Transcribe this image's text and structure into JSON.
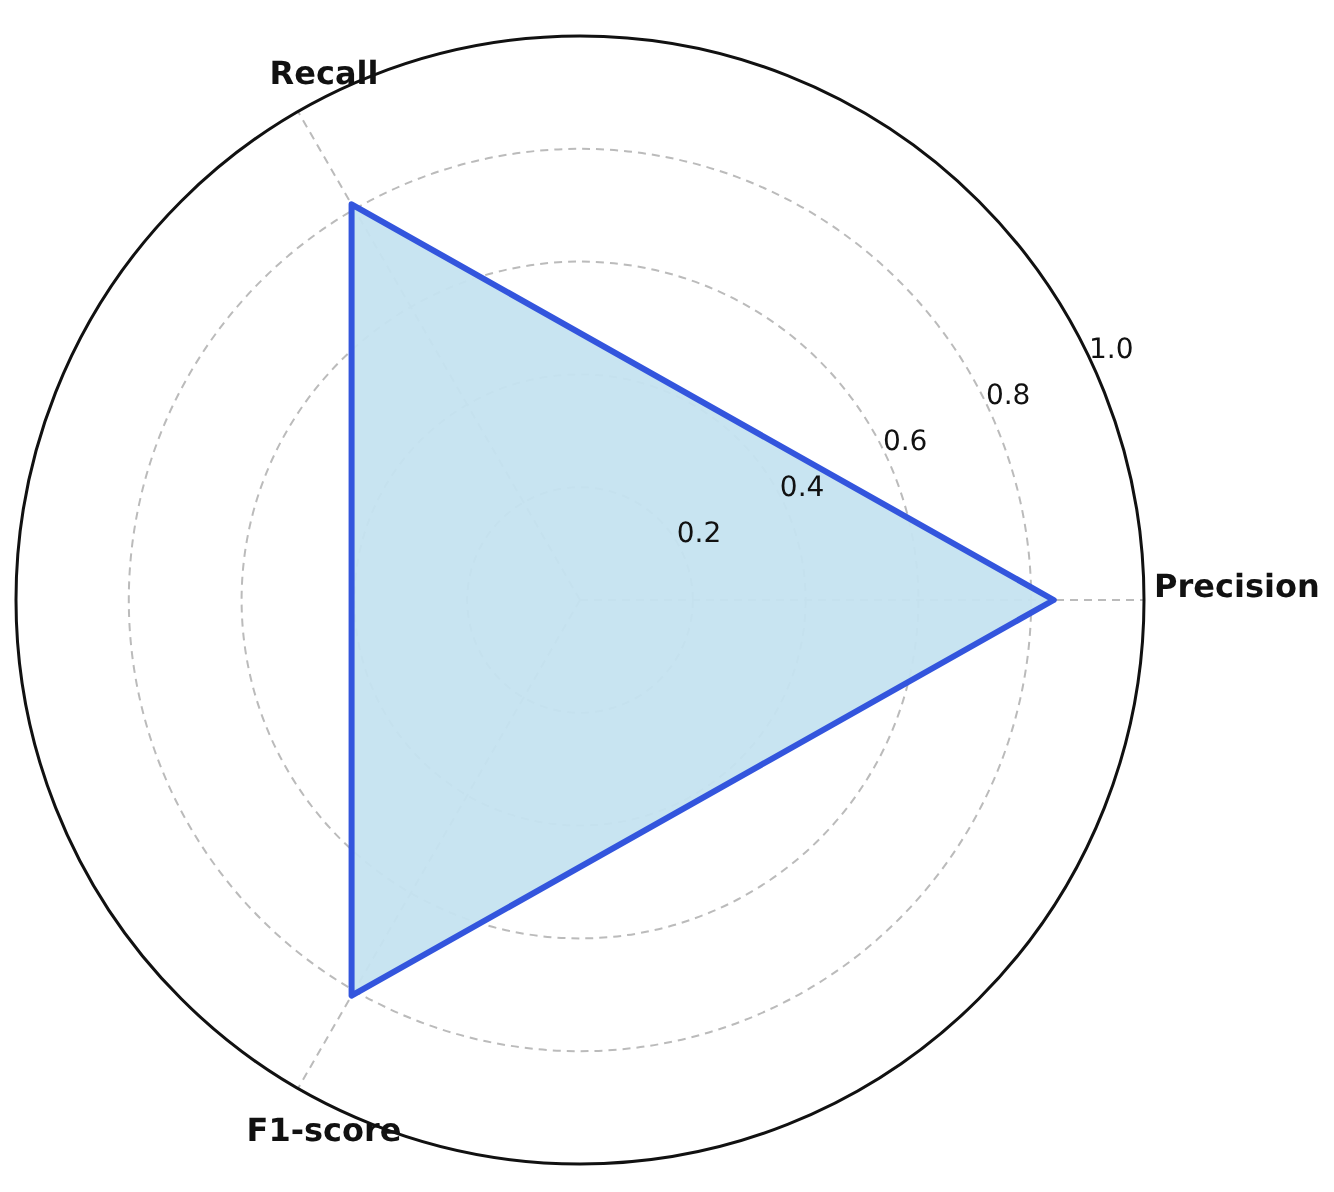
{
  "chart_data": {
    "type": "radar",
    "categories": [
      "Precision",
      "F1-score",
      "Recall"
    ],
    "series": [
      {
        "color": "#3355dd",
        "values": [
          0.84,
          0.81,
          0.81
        ]
      }
    ],
    "ylim": [
      0,
      1
    ],
    "yticks": [
      {
        "value": 0.2,
        "label": "0.2"
      },
      {
        "value": 0.4,
        "label": "0.4"
      },
      {
        "value": 0.6,
        "label": "0.6"
      },
      {
        "value": 0.8,
        "label": "0.8"
      },
      {
        "value": 1,
        "label": "1.0"
      }
    ],
    "grid": true
  }
}
